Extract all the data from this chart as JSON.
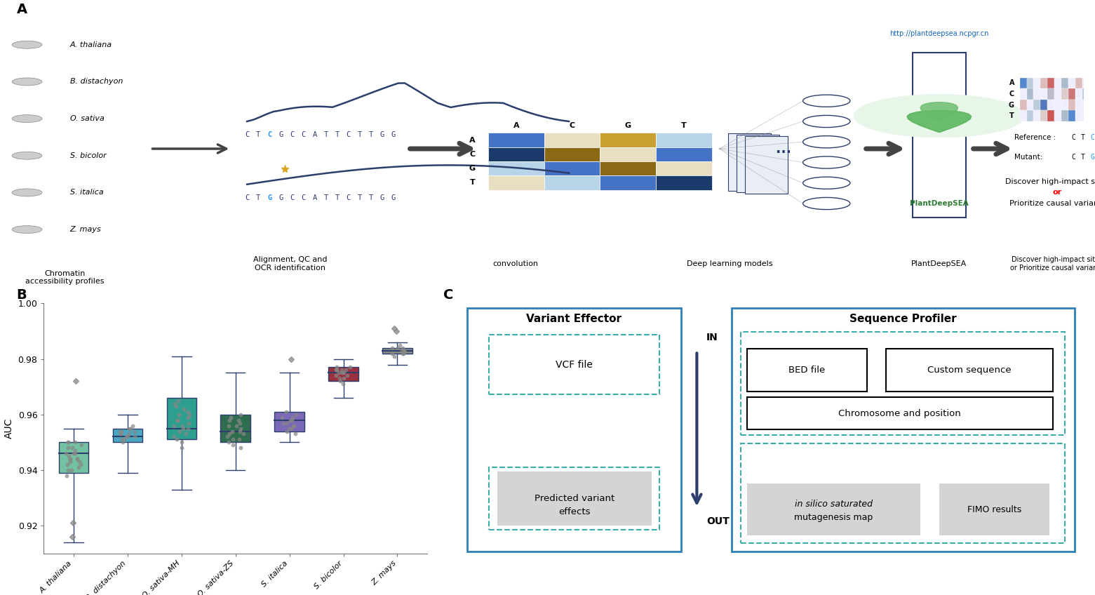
{
  "boxplot_data": {
    "A. thaliana": {
      "whisker_low": 0.914,
      "q1": 0.939,
      "median": 0.946,
      "q3": 0.95,
      "whisker_high": 0.955,
      "outliers": [
        0.916,
        0.921,
        0.972
      ],
      "jitter": [
        0.94,
        0.942,
        0.944,
        0.946,
        0.948,
        0.95,
        0.938,
        0.943,
        0.947,
        0.944,
        0.946,
        0.949,
        0.941,
        0.945,
        0.95,
        0.94,
        0.943,
        0.946,
        0.948,
        0.944,
        0.95,
        0.942,
        0.944
      ],
      "color": "#72C1A0"
    },
    "B. distachyon": {
      "whisker_low": 0.939,
      "q1": 0.95,
      "median": 0.952,
      "q3": 0.955,
      "whisker_high": 0.96,
      "outliers": [],
      "jitter": [
        0.95,
        0.952,
        0.953,
        0.954,
        0.955,
        0.951,
        0.953,
        0.952,
        0.954,
        0.956,
        0.951,
        0.953,
        0.955,
        0.952,
        0.954
      ],
      "color": "#4AA8C2"
    },
    "O. sativa-MH": {
      "whisker_low": 0.933,
      "q1": 0.951,
      "median": 0.955,
      "q3": 0.966,
      "whisker_high": 0.981,
      "outliers": [],
      "jitter": [
        0.95,
        0.952,
        0.955,
        0.958,
        0.962,
        0.965,
        0.948,
        0.956,
        0.963,
        0.96,
        0.953,
        0.957,
        0.961,
        0.955,
        0.959,
        0.964,
        0.951,
        0.956,
        0.96,
        0.954,
        0.958
      ],
      "color": "#2E9E8E"
    },
    "O. sativa-ZS": {
      "whisker_low": 0.94,
      "q1": 0.95,
      "median": 0.954,
      "q3": 0.96,
      "whisker_high": 0.975,
      "outliers": [],
      "jitter": [
        0.948,
        0.951,
        0.954,
        0.956,
        0.958,
        0.96,
        0.95,
        0.953,
        0.957,
        0.959,
        0.952,
        0.955,
        0.958,
        0.951,
        0.954,
        0.956,
        0.949,
        0.953
      ],
      "color": "#2E6E4E"
    },
    "S. italica": {
      "whisker_low": 0.95,
      "q1": 0.954,
      "median": 0.958,
      "q3": 0.961,
      "whisker_high": 0.975,
      "outliers": [
        0.98
      ],
      "jitter": [
        0.953,
        0.955,
        0.957,
        0.959,
        0.961,
        0.954,
        0.956,
        0.958,
        0.96,
        0.955,
        0.957,
        0.959,
        0.956,
        0.958
      ],
      "color": "#7B68B8"
    },
    "S. bicolor": {
      "whisker_low": 0.966,
      "q1": 0.972,
      "median": 0.975,
      "q3": 0.977,
      "whisker_high": 0.98,
      "outliers": [],
      "jitter": [
        0.971,
        0.973,
        0.975,
        0.976,
        0.977,
        0.974,
        0.976,
        0.972,
        0.975,
        0.977,
        0.973,
        0.976,
        0.974,
        0.975,
        0.976
      ],
      "color": "#9B3040"
    },
    "Z. mays": {
      "whisker_low": 0.978,
      "q1": 0.982,
      "median": 0.983,
      "q3": 0.984,
      "whisker_high": 0.986,
      "outliers": [
        0.99,
        0.991
      ],
      "jitter": [
        0.981,
        0.982,
        0.983,
        0.984,
        0.985,
        0.982,
        0.983,
        0.984,
        0.983,
        0.984,
        0.982,
        0.983
      ],
      "color": "#888888"
    }
  },
  "ylabel": "AUC",
  "ylim": [
    0.91,
    1.0
  ],
  "yticks": [
    0.92,
    0.94,
    0.96,
    0.98,
    1.0
  ],
  "dark_navy": "#2C3E6B",
  "teal": "#3AADA8",
  "blue_box": "#2E7EB8",
  "gray_fill": "#D4D4D4",
  "jitter_color": "#888888",
  "bg_color": "#FFFFFF",
  "grid_colors": [
    [
      "#4472C4",
      "#E8DFC0",
      "#C8A030",
      "#B8D4E8"
    ],
    [
      "#1A3A6B",
      "#8B6914",
      "#E8DFC0",
      "#4472C4"
    ],
    [
      "#B8D4E8",
      "#4472C4",
      "#8B6914",
      "#E8DFC0"
    ],
    [
      "#E8DFC0",
      "#B8D4E8",
      "#4472C4",
      "#1A3A6B"
    ]
  ],
  "hm_colors_flat": [
    "#5588CC",
    "#BBCCDD",
    "#EEEEFF",
    "#DDBBBB",
    "#CC6666",
    "#EEEEFF",
    "#AABBCC",
    "#EEEEFF",
    "#DDBBBB",
    "#EEEEFF",
    "#BBCCDD",
    "#5588CC",
    "#EEEEFF",
    "#AABBCC",
    "#EEEEFF",
    "#EEEEFF",
    "#BBBBCC",
    "#EEEEFF",
    "#DDCCCC",
    "#CC7777",
    "#EEEEFF",
    "#BBCCDD",
    "#EEEEFF",
    "#AABBCC",
    "#DDBBBB",
    "#EEEEFF",
    "#BBCCDD",
    "#5577BB",
    "#EEEEFF",
    "#EEEEFF",
    "#EEEEFF",
    "#DDBBBB",
    "#EEEEFF",
    "#EEEEFF",
    "#DDCCCC",
    "#EEEEFF",
    "#EEEEFF",
    "#BBCCDD",
    "#EEEEFF",
    "#DDCCCC",
    "#CC5555",
    "#EEEEFF",
    "#AABBCC",
    "#5588CC",
    "#EEEEFF",
    "#EEEEFF",
    "#BBCCDD",
    "#EEEEFF"
  ],
  "species_list": [
    "A. thaliana",
    "B. distachyon",
    "O. sativa",
    "S. bicolor",
    "S. italica",
    "Z. mays"
  ]
}
